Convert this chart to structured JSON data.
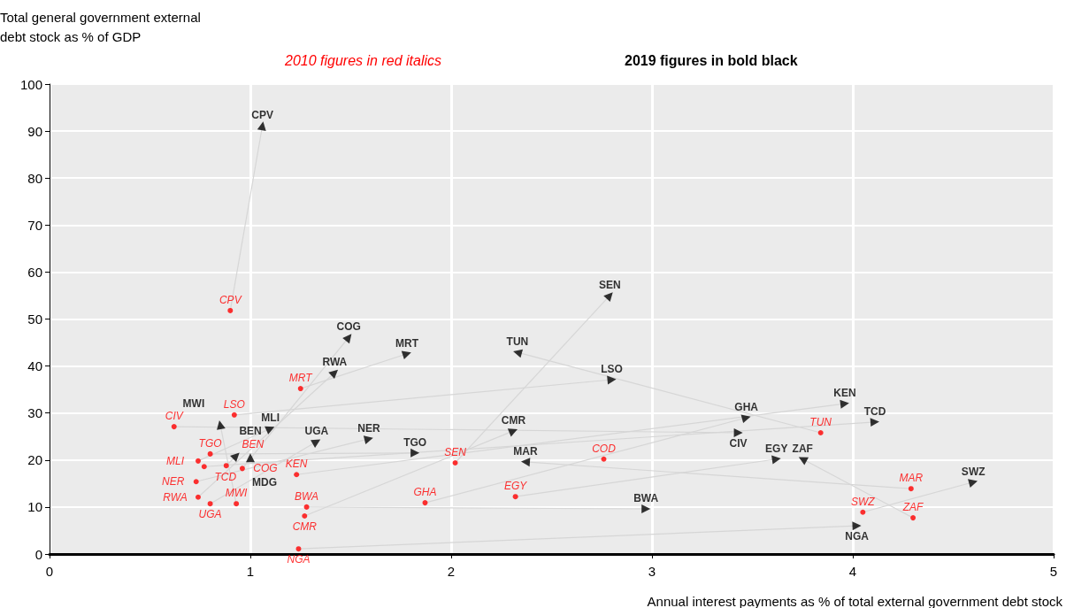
{
  "chart_data": {
    "type": "scatter",
    "xlabel": "Annual interest payments as % of total external government debt stock",
    "ylabel": "Total general government external debt stock as % of GDP",
    "annotations": [
      "2010 figures in red italics",
      "2019 figures in bold black"
    ],
    "marker": "triangle",
    "grid": true,
    "xlim": [
      0,
      5
    ],
    "xticks": [
      0,
      1,
      2,
      3,
      4,
      5
    ],
    "ylim": [
      0,
      100
    ],
    "yticks": [
      0,
      10,
      20,
      30,
      40,
      50,
      60,
      70,
      80,
      90,
      100
    ],
    "series": [
      {
        "color": "#ff0000",
        "marker": "circle",
        "x": [
          0.9,
          1.25,
          0.92,
          0.62,
          0.8,
          0.74,
          0.77,
          0.88,
          0.96,
          0.73,
          0.74,
          0.8,
          0.93,
          1.23,
          1.28,
          1.27,
          1.24,
          1.87,
          2.02,
          2.32,
          2.76,
          3.84,
          4.29,
          4.05,
          4.3,
          null
        ],
        "values": [
          51.8,
          35.2,
          29.6,
          27.1,
          21.3,
          19.8,
          18.6,
          18.8,
          18.2,
          15.4,
          12.1,
          10.7,
          10.7,
          16.9,
          10.0,
          8.1,
          1.1,
          10.9,
          19.4,
          12.2,
          20.2,
          25.8,
          13.9,
          8.9,
          7.7,
          null
        ],
        "value_labels": [
          "CPV",
          "MRT",
          "LSO",
          "CIV",
          "TGO",
          "MLI",
          "TCD",
          "BEN",
          "COG",
          "NER",
          "RWA",
          "UGA",
          "MWI",
          "KEN",
          "BWA",
          "CMR",
          "NGA",
          "GHA",
          "SEN",
          "EGY",
          "COD",
          "TUN",
          "MAR",
          "SWZ",
          "ZAF",
          null
        ]
      },
      {
        "color": "#000000",
        "x": [
          1.06,
          1.78,
          2.8,
          3.43,
          1.82,
          1.1,
          4.11,
          0.93,
          1.49,
          1.59,
          1.42,
          1.33,
          0.85,
          3.96,
          2.97,
          2.31,
          4.02,
          3.47,
          2.79,
          3.62,
          null,
          2.33,
          2.37,
          4.6,
          3.75,
          1.0
        ],
        "values": [
          91.1,
          42.6,
          37.1,
          25.8,
          21.5,
          26.7,
          28.1,
          20.9,
          46.1,
          24.5,
          38.6,
          23.9,
          27.5,
          32.0,
          9.6,
          26.2,
          6.0,
          29.0,
          55.0,
          20.2,
          null,
          42.9,
          19.6,
          15.3,
          20.2,
          20.5
        ],
        "value_labels": [
          "CPV",
          "MRT",
          "LSO",
          "CIV",
          "TGO",
          "MLI",
          "TCD",
          "BEN",
          "COG",
          "NER",
          "RWA",
          "UGA",
          "MWI",
          "KEN",
          "BWA",
          "CMR",
          "NGA",
          "GHA",
          "SEN",
          "EGY",
          null,
          "TUN",
          "MAR",
          "SWZ",
          "ZAF",
          "MDG"
        ]
      }
    ]
  }
}
